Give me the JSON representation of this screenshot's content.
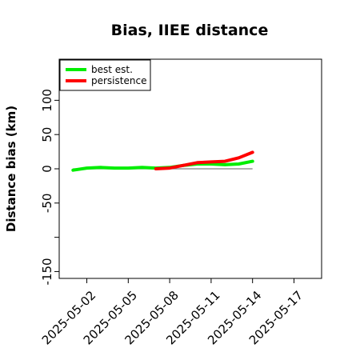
{
  "chart_data": {
    "type": "line",
    "title": "Bias, IIEE distance",
    "ylabel": "Distance bias (km)",
    "xlabel": "",
    "xlim": [
      "2025-04-30",
      "2025-05-19"
    ],
    "ylim": [
      -160,
      160
    ],
    "yticks": [
      -150,
      -50,
      0,
      50,
      100
    ],
    "yticks_minor": [
      -100
    ],
    "xticks": [
      "2025-05-02",
      "2025-05-05",
      "2025-05-08",
      "2025-05-11",
      "2025-05-14",
      "2025-05-17"
    ],
    "legend": {
      "placement": "top-left"
    },
    "zero_line": {
      "from": "2025-05-01",
      "to": "2025-05-14",
      "color": "#808080"
    },
    "series": [
      {
        "name": "best est.",
        "color": "#00ee00",
        "x": [
          "2025-05-01",
          "2025-05-02",
          "2025-05-03",
          "2025-05-04",
          "2025-05-05",
          "2025-05-06",
          "2025-05-07",
          "2025-05-08",
          "2025-05-09",
          "2025-05-10",
          "2025-05-11",
          "2025-05-12",
          "2025-05-13",
          "2025-05-14"
        ],
        "values": [
          -2,
          1,
          2,
          1,
          1,
          2,
          1,
          2,
          5,
          7,
          7,
          6,
          7,
          11
        ]
      },
      {
        "name": "persistence",
        "color": "#ff0000",
        "x": [
          "2025-05-07",
          "2025-05-08",
          "2025-05-09",
          "2025-05-10",
          "2025-05-11",
          "2025-05-12",
          "2025-05-13",
          "2025-05-14"
        ],
        "values": [
          0,
          1,
          5,
          9,
          10,
          11,
          16,
          24
        ]
      }
    ]
  }
}
